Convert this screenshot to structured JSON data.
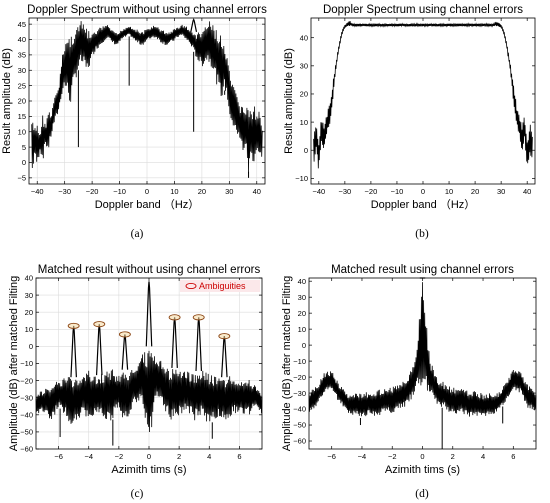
{
  "chart_data": [
    {
      "id": "a",
      "type": "line",
      "title": "Doppler Spectrum without using channel errors",
      "xlabel": "Doppler band （Hz）",
      "ylabel": "Result amplitude (dB)",
      "panel_label": "(a)",
      "xlim": [
        -43,
        43
      ],
      "ylim": [
        -7,
        47
      ],
      "xticks": [
        -40,
        -30,
        -20,
        -10,
        0,
        10,
        20,
        30,
        40
      ],
      "yticks": [
        -5,
        0,
        5,
        10,
        15,
        20,
        25,
        30,
        35,
        40,
        45
      ],
      "grid": true,
      "x": [
        -42,
        -41,
        -40,
        -39,
        -38,
        -37,
        -36,
        -35,
        -34,
        -33,
        -32,
        -31,
        -30,
        -29,
        -28,
        -27,
        -26,
        -25,
        -24,
        -23,
        -22,
        -21,
        -20,
        -19,
        -18,
        -17,
        -16,
        -15,
        -14,
        -13,
        -12,
        -11,
        -10,
        -9,
        -8,
        -7,
        -6,
        -5,
        -4,
        -3,
        -2,
        -1,
        0,
        1,
        2,
        3,
        4,
        5,
        6,
        7,
        8,
        9,
        10,
        11,
        12,
        13,
        14,
        15,
        16,
        17,
        18,
        19,
        20,
        21,
        22,
        23,
        24,
        25,
        26,
        27,
        28,
        29,
        30,
        31,
        32,
        33,
        34,
        35,
        36,
        37,
        38,
        39,
        40,
        41,
        42
      ],
      "upper": [
        15,
        11,
        13,
        9,
        16,
        12,
        18,
        15,
        20,
        23,
        26,
        34,
        40,
        41,
        42,
        43,
        44,
        45,
        46,
        45,
        44,
        42.5,
        42,
        42.5,
        43.5,
        44,
        44.5,
        45,
        44.5,
        43.5,
        42.5,
        42,
        42.5,
        43.5,
        44,
        44.5,
        44.5,
        44,
        43.5,
        43,
        42.5,
        43,
        43.5,
        44,
        44.5,
        44.5,
        44,
        43.5,
        43,
        42.5,
        42.5,
        43,
        43.5,
        44,
        44.5,
        45,
        44.5,
        44,
        43,
        42.5,
        42,
        42.5,
        43.5,
        44.5,
        45.5,
        46,
        45,
        44,
        43,
        41,
        39,
        35,
        30,
        26,
        24,
        21,
        19,
        20,
        17,
        20,
        16,
        19,
        15,
        17,
        13
      ],
      "lower": [
        -6,
        2,
        -2,
        4,
        0,
        6,
        3,
        8,
        12,
        14,
        17,
        22,
        24,
        22,
        18,
        23,
        27,
        30,
        32,
        31,
        29,
        31,
        34,
        36,
        37,
        38,
        39,
        40,
        40,
        39,
        38.5,
        38,
        39,
        40,
        40.5,
        41,
        41,
        40,
        39,
        38.5,
        38,
        38.5,
        39.5,
        40,
        40.5,
        40.5,
        40,
        39,
        38.5,
        38,
        38.5,
        39,
        39.5,
        40.5,
        41,
        41,
        40,
        39,
        38,
        36,
        34,
        32,
        31,
        32,
        33,
        32,
        30,
        27,
        23,
        20,
        24,
        22,
        16,
        10,
        12,
        8,
        6,
        3,
        5,
        -5,
        2,
        -1,
        4,
        0,
        2
      ],
      "dips": [
        {
          "x": -25,
          "y": 5
        },
        {
          "x": -6.5,
          "y": 25
        },
        {
          "x": 17,
          "y": 10
        },
        {
          "x": 28.3,
          "y": 22
        },
        {
          "x": 37,
          "y": -3
        }
      ],
      "peaks": [
        {
          "x": 17,
          "y": 46.5
        }
      ]
    },
    {
      "id": "b",
      "type": "line",
      "title": "Doppler Spectrum using channel errors",
      "xlabel": "Doppler band （Hz）",
      "ylabel": "Result amplitude (dB)",
      "panel_label": "(b)",
      "xlim": [
        -43,
        43
      ],
      "ylim": [
        -12,
        47
      ],
      "xticks": [
        -40,
        -30,
        -20,
        -10,
        0,
        10,
        20,
        30,
        40
      ],
      "yticks": [
        -10,
        0,
        10,
        20,
        30,
        40
      ],
      "grid": false,
      "x": [
        -42,
        -41,
        -40,
        -39,
        -38,
        -37,
        -36,
        -35,
        -34,
        -33,
        -32,
        -31,
        -30,
        -29,
        -28,
        -27,
        -26,
        -20,
        -10,
        0,
        10,
        20,
        26,
        27,
        28,
        29,
        30,
        31,
        32,
        33,
        34,
        35,
        36,
        37,
        38,
        39,
        40,
        41,
        42
      ],
      "upper": [
        6,
        10,
        4,
        12,
        10,
        13,
        16,
        22,
        28,
        34,
        39,
        43,
        44.5,
        45.5,
        46,
        45,
        45,
        45,
        45,
        45,
        45,
        45,
        45,
        45,
        46,
        45.5,
        44.5,
        43,
        39,
        34,
        28,
        22,
        16,
        13,
        10,
        12,
        4,
        10,
        6
      ],
      "lower": [
        -5,
        -1,
        -8,
        3,
        -2,
        5,
        8,
        14,
        24,
        31,
        37,
        41,
        43.5,
        44,
        44,
        44,
        44,
        44,
        44,
        44,
        44,
        44,
        44,
        44,
        44,
        44,
        43.5,
        41,
        37,
        31,
        24,
        14,
        8,
        5,
        -2,
        3,
        -8,
        -1,
        -5
      ]
    },
    {
      "id": "c",
      "type": "line",
      "title": "Matched result without using channel errors",
      "xlabel": "Azimith tims (s)",
      "ylabel": "Amplitude (dB) after matched Filting",
      "panel_label": "(c)",
      "legend": "Ambiguities",
      "legend_position": "top-right",
      "xlim": [
        -7.5,
        7.5
      ],
      "ylim": [
        -60,
        40
      ],
      "xticks": [
        -6,
        -4,
        -2,
        0,
        2,
        4,
        6
      ],
      "yticks": [
        -60,
        -50,
        -40,
        -30,
        -20,
        -10,
        0,
        10,
        20,
        30,
        40
      ],
      "grid": true,
      "x": [
        -7.5,
        -7,
        -6.5,
        -6,
        -5.5,
        -5,
        -4.5,
        -4,
        -3.5,
        -3,
        -2.5,
        -2,
        -1.5,
        -1,
        -0.5,
        0,
        0.5,
        1,
        1.5,
        2,
        2.5,
        3,
        3.5,
        4,
        4.5,
        5,
        5.5,
        6,
        6.5,
        7,
        7.5
      ],
      "upper": [
        -28,
        -25,
        -22,
        -20,
        -17,
        -18,
        -18,
        -14,
        -18,
        -15,
        -12,
        -16,
        -13,
        -11,
        -5,
        0,
        -5,
        -11,
        -13,
        -12,
        -14,
        -15,
        -14,
        -16,
        -18,
        -18,
        -17,
        -20,
        -18,
        -22,
        -26
      ],
      "lower": [
        -40,
        -38,
        -45,
        -35,
        -42,
        -48,
        -40,
        -45,
        -38,
        -42,
        -44,
        -38,
        -45,
        -36,
        -30,
        -60,
        -30,
        -36,
        -45,
        -40,
        -38,
        -44,
        -40,
        -46,
        -42,
        -44,
        -40,
        -38,
        -42,
        -36,
        -40
      ],
      "peaks": [
        {
          "x": -5.0,
          "y": 12
        },
        {
          "x": -3.3,
          "y": 13
        },
        {
          "x": -1.6,
          "y": 7
        },
        {
          "x": 0,
          "y": 38
        },
        {
          "x": 1.7,
          "y": 17
        },
        {
          "x": 3.3,
          "y": 17
        },
        {
          "x": 5.0,
          "y": 6
        }
      ],
      "circled_peaks": [
        {
          "x": -5.0,
          "y": 12
        },
        {
          "x": -3.3,
          "y": 13
        },
        {
          "x": -1.6,
          "y": 7
        },
        {
          "x": 1.7,
          "y": 17
        },
        {
          "x": 3.3,
          "y": 17
        },
        {
          "x": 5.0,
          "y": 6
        }
      ],
      "dips": [
        {
          "x": -5.9,
          "y": -53
        },
        {
          "x": -2.4,
          "y": -58
        },
        {
          "x": 4.2,
          "y": -54
        }
      ]
    },
    {
      "id": "d",
      "type": "line",
      "title": "Matched result using channel errors",
      "xlabel": "Azimith tims (s)",
      "ylabel": "Amplitude (dB) after matched Filting",
      "panel_label": "(d)",
      "xlim": [
        -7.5,
        7.5
      ],
      "ylim": [
        -65,
        42
      ],
      "xticks": [
        -6,
        -4,
        -2,
        0,
        2,
        4,
        6
      ],
      "yticks": [
        -60,
        -50,
        -40,
        -30,
        -20,
        -10,
        0,
        10,
        20,
        30,
        40
      ],
      "grid": false,
      "x": [
        -7.5,
        -7,
        -6.5,
        -6,
        -5.5,
        -5,
        -4.5,
        -4,
        -3.5,
        -3,
        -2.5,
        -2,
        -1.5,
        -1,
        -0.5,
        0,
        0.5,
        1,
        1.5,
        2,
        2.5,
        3,
        3.5,
        4,
        4.5,
        5,
        5.5,
        6,
        6.5,
        7,
        7.5
      ],
      "upper": [
        -30,
        -25,
        -17,
        -16,
        -24,
        -30,
        -30,
        -30,
        -29,
        -28,
        -27,
        -26,
        -24,
        -20,
        -10,
        42,
        -10,
        -20,
        -24,
        -26,
        -27,
        -28,
        -29,
        -30,
        -30,
        -30,
        -24,
        -15,
        -17,
        -25,
        -30
      ],
      "lower": [
        -42,
        -40,
        -30,
        -28,
        -36,
        -42,
        -44,
        -46,
        -44,
        -45,
        -42,
        -44,
        -40,
        -38,
        -30,
        -28,
        -30,
        -38,
        -40,
        -44,
        -42,
        -45,
        -44,
        -46,
        -44,
        -42,
        -36,
        -28,
        -30,
        -40,
        -42
      ],
      "peaks": [
        {
          "x": 0,
          "y": 42
        }
      ],
      "dips": [
        {
          "x": -4.1,
          "y": -50
        },
        {
          "x": 1.3,
          "y": -65
        },
        {
          "x": 5.3,
          "y": -49
        }
      ]
    }
  ]
}
